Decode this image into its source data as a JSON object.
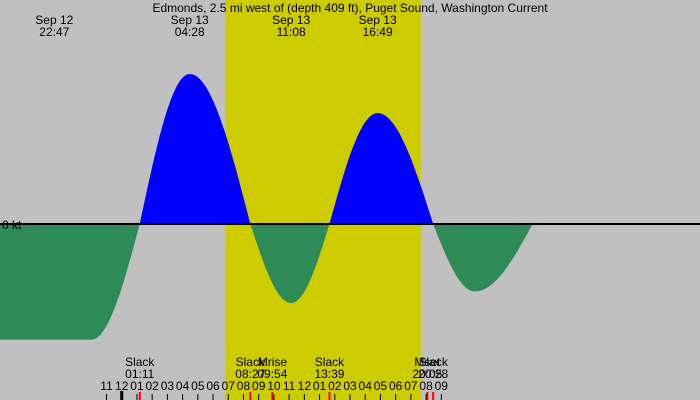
{
  "chart_data": {
    "type": "area",
    "title": "Edmonds, 2.5 mi west of (depth 409 ft), Puget Sound, Washington Current",
    "xlim": [
      -8.0,
      38.0
    ],
    "ylim": [
      -1.23,
      2.3
    ],
    "zero_label": "0 kt",
    "daylight": {
      "start": 6.8,
      "end": 19.65
    },
    "curve": [
      {
        "x": -9.0,
        "y": -1.8
      },
      {
        "x": -2.0,
        "y": -1.8
      },
      {
        "x": 1.1833,
        "y": 0
      },
      {
        "x": 4.4667,
        "y": 2.3
      },
      {
        "x": 8.45,
        "y": 0
      },
      {
        "x": 11.1333,
        "y": -1.23
      },
      {
        "x": 13.65,
        "y": 0
      },
      {
        "x": 16.8167,
        "y": 1.7
      },
      {
        "x": 20.4667,
        "y": 0
      },
      {
        "x": 23.2,
        "y": -1.05
      },
      {
        "x": 27.0,
        "y": 0
      }
    ],
    "top_labels": [
      {
        "x": -4.43,
        "date": "Sep 12",
        "time": "22:47"
      },
      {
        "x": 4.4667,
        "date": "Sep 13",
        "time": "04:28"
      },
      {
        "x": 11.1333,
        "date": "Sep 13",
        "time": "11:08"
      },
      {
        "x": 16.8167,
        "date": "Sep 13",
        "time": "16:49"
      }
    ],
    "events": [
      {
        "x": 1.1833,
        "name": "Slack",
        "time": "01:11"
      },
      {
        "x": 8.45,
        "name": "Slack",
        "time": "08:27"
      },
      {
        "x": 9.9,
        "name": "Mrise",
        "time": "09:54"
      },
      {
        "x": 13.65,
        "name": "Slack",
        "time": "13:39"
      },
      {
        "x": 20.0833,
        "name": "Mset",
        "time": "20:05"
      },
      {
        "x": 20.4667,
        "name": "Slack",
        "time": "20:28"
      }
    ],
    "hour_ticks": [
      {
        "x": -1,
        "label": "11"
      },
      {
        "x": 0,
        "label": "12"
      },
      {
        "x": 1,
        "label": "01"
      },
      {
        "x": 2,
        "label": "02"
      },
      {
        "x": 3,
        "label": "03"
      },
      {
        "x": 4,
        "label": "04"
      },
      {
        "x": 5,
        "label": "05"
      },
      {
        "x": 6,
        "label": "06"
      },
      {
        "x": 7,
        "label": "07"
      },
      {
        "x": 8,
        "label": "08"
      },
      {
        "x": 9,
        "label": "09"
      },
      {
        "x": 10,
        "label": "10"
      },
      {
        "x": 11,
        "label": "11"
      },
      {
        "x": 12,
        "label": "12"
      },
      {
        "x": 13,
        "label": "01"
      },
      {
        "x": 14,
        "label": "02"
      },
      {
        "x": 15,
        "label": "03"
      },
      {
        "x": 16,
        "label": "04"
      },
      {
        "x": 17,
        "label": "05"
      },
      {
        "x": 18,
        "label": "06"
      },
      {
        "x": 19,
        "label": "07"
      },
      {
        "x": 20,
        "label": "08"
      },
      {
        "x": 21,
        "label": "09"
      }
    ],
    "colors": {
      "night": "#c0c0c0",
      "day": "#cccc00",
      "flood": "#0000ff",
      "ebb": "#2e8b57",
      "event_marker": "#ff0000",
      "midnight_marker": "#000000"
    }
  }
}
